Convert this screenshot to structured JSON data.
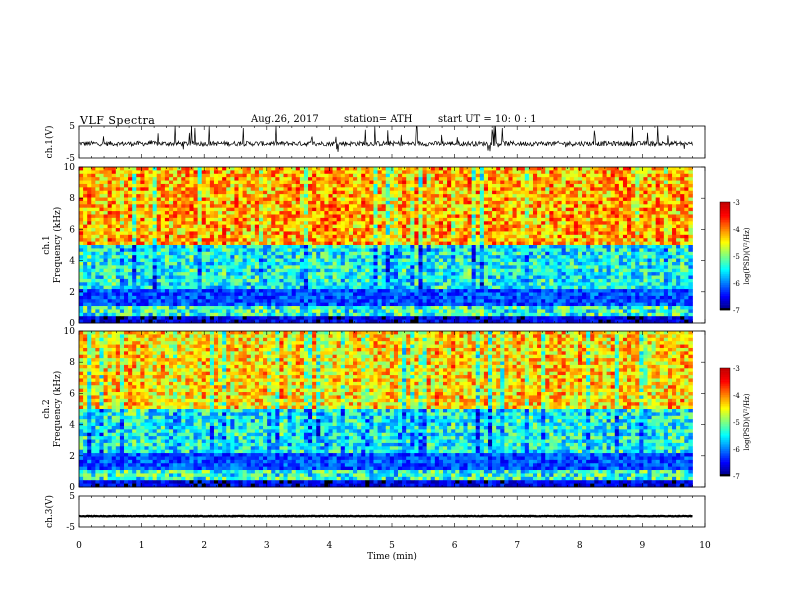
{
  "header": {
    "title": "VLF  Spectra",
    "date": "Aug.26, 2017",
    "station": "station= ATH",
    "start": "start  UT  =    10: 0   : 1"
  },
  "chart_data": [
    {
      "type": "line",
      "panel": "ch1-waveform",
      "ylabel": "ch.1(V)",
      "yticks": [
        "5",
        "-5"
      ],
      "ylim": [
        -5,
        5
      ],
      "xlim": [
        0,
        10
      ],
      "baseline": -0.5,
      "amplitude": 1.5,
      "spikes": true,
      "color": "#000000"
    },
    {
      "type": "heatmap",
      "panel": "ch1-spectrogram",
      "ylabel": "Frequency  (kHz)",
      "ylabel_prefix": "ch.1",
      "yticks": [
        "0",
        "2",
        "4",
        "6",
        "8",
        "10"
      ],
      "ylim": [
        0,
        10
      ],
      "xlim": [
        0,
        9.8
      ],
      "colorbar": {
        "label": "log(PSD)(V²/Hz)",
        "ticks": [
          "-3",
          "-4",
          "-5",
          "-6",
          "-7"
        ],
        "range": [
          -7,
          -3
        ]
      }
    },
    {
      "type": "heatmap",
      "panel": "ch2-spectrogram",
      "ylabel": "Frequency  (kHz)",
      "ylabel_prefix": "ch.2",
      "yticks": [
        "0",
        "2",
        "4",
        "6",
        "8",
        "10"
      ],
      "ylim": [
        0,
        10
      ],
      "xlim": [
        0,
        9.8
      ],
      "colorbar": {
        "label": "log(PSD)(V²/Hz)",
        "ticks": [
          "-3",
          "-4",
          "-5",
          "-6",
          "-7"
        ],
        "range": [
          -7,
          -3
        ]
      }
    },
    {
      "type": "line",
      "panel": "ch3-waveform",
      "ylabel": "ch.3(V)",
      "yticks": [
        "5",
        "-5"
      ],
      "ylim": [
        -5,
        5
      ],
      "xlim": [
        0,
        10
      ],
      "baseline": -1.5,
      "amplitude": 0.2,
      "spikes": false,
      "color": "#000000",
      "xlabel": "Time  (min)",
      "xticks": [
        "0",
        "1",
        "2",
        "3",
        "4",
        "5",
        "6",
        "7",
        "8",
        "9",
        "10"
      ]
    }
  ]
}
